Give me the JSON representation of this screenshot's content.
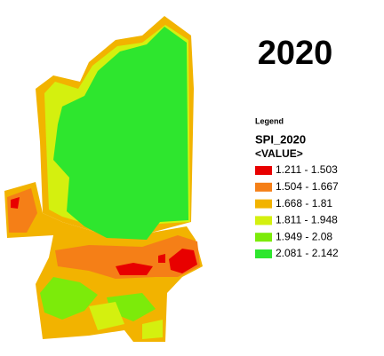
{
  "title": "2020",
  "legend": {
    "heading": "Legend",
    "layer": "SPI_2020",
    "field": "<VALUE>",
    "items": [
      {
        "label": "1.211 - 1.503",
        "color": "#e80000"
      },
      {
        "label": "1.504 - 1.667",
        "color": "#f57f17"
      },
      {
        "label": "1.668 - 1.81",
        "color": "#f2b300"
      },
      {
        "label": "1.811 - 1.948",
        "color": "#d4f00f"
      },
      {
        "label": "1.949 - 2.08",
        "color": "#7ceb0a"
      },
      {
        "label": "2.081 - 2.142",
        "color": "#2ee62e"
      }
    ]
  }
}
